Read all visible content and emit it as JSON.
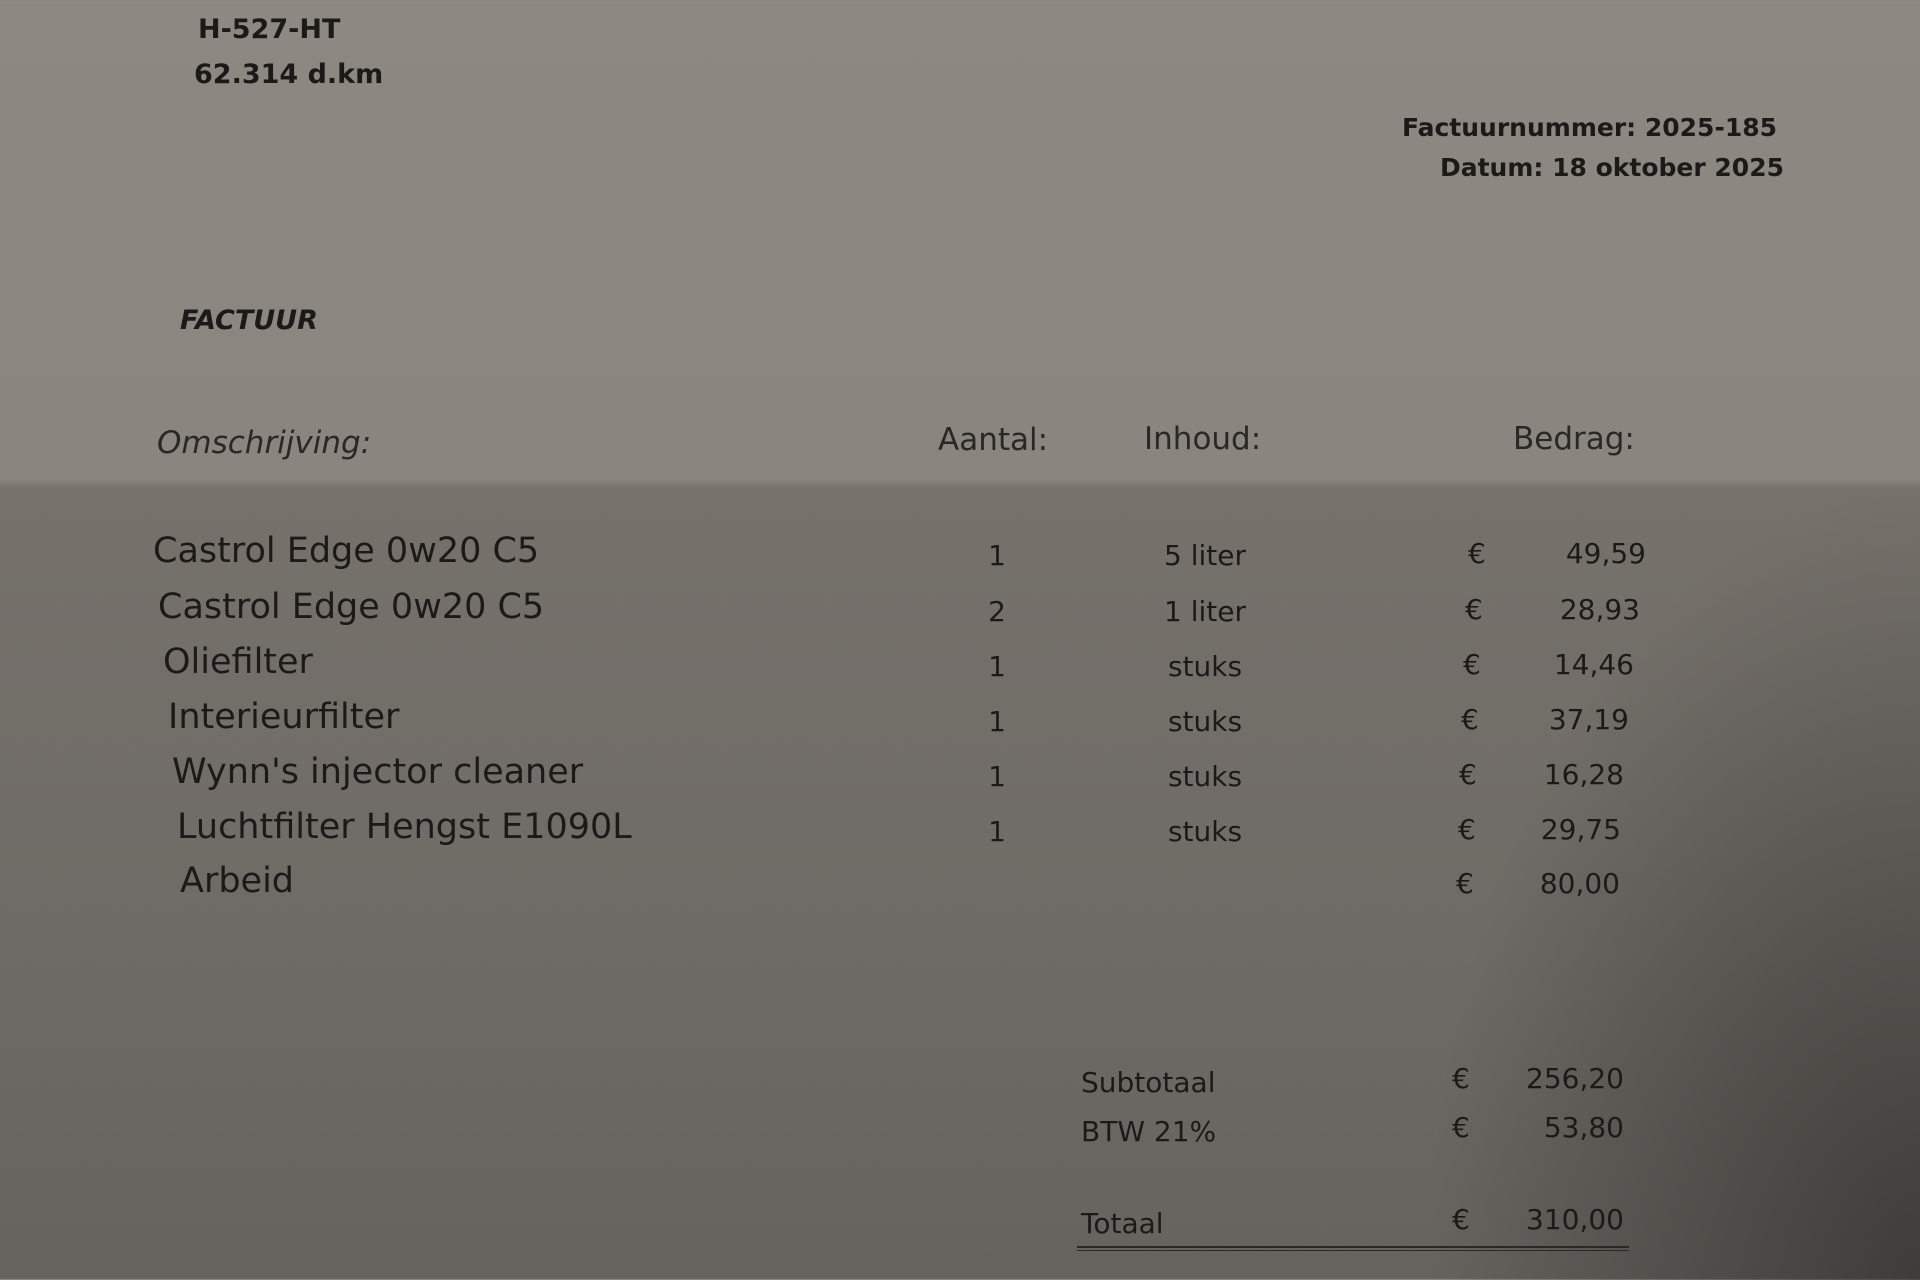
{
  "vehicle": {
    "plate": "H-527-HT",
    "mileage": "62.314 d.km"
  },
  "invoice": {
    "number_label": "Factuurnummer: 2025-185",
    "date_label": "Datum:  18 oktober 2025",
    "title": "FACTUUR"
  },
  "table": {
    "headers": {
      "description": "Omschrijving:",
      "quantity": "Aantal:",
      "content": "Inhoud:",
      "amount": "Bedrag:"
    },
    "rows": [
      {
        "description": "Castrol Edge 0w20 C5",
        "quantity": "1",
        "content": "5 liter",
        "currency": "€",
        "amount": "49,59"
      },
      {
        "description": "Castrol Edge 0w20 C5",
        "quantity": "2",
        "content": "1 liter",
        "currency": "€",
        "amount": "28,93"
      },
      {
        "description": "Oliefilter",
        "quantity": "1",
        "content": "stuks",
        "currency": "€",
        "amount": "14,46"
      },
      {
        "description": "Interieurfilter",
        "quantity": "1",
        "content": "stuks",
        "currency": "€",
        "amount": "37,19"
      },
      {
        "description": "Wynn's injector cleaner",
        "quantity": "1",
        "content": "stuks",
        "currency": "€",
        "amount": "16,28"
      },
      {
        "description": "Luchtfilter Hengst E1090L",
        "quantity": "1",
        "content": "stuks",
        "currency": "€",
        "amount": "29,75"
      },
      {
        "description": "Arbeid",
        "quantity": "",
        "content": "",
        "currency": "€",
        "amount": "80,00"
      }
    ]
  },
  "totals": {
    "subtotal": {
      "label": "Subtotaal",
      "currency": "€",
      "amount": "256,20"
    },
    "vat": {
      "label": "BTW 21%",
      "currency": "€",
      "amount": "53,80"
    },
    "total": {
      "label": "Totaal",
      "currency": "€",
      "amount": "310,00"
    }
  }
}
